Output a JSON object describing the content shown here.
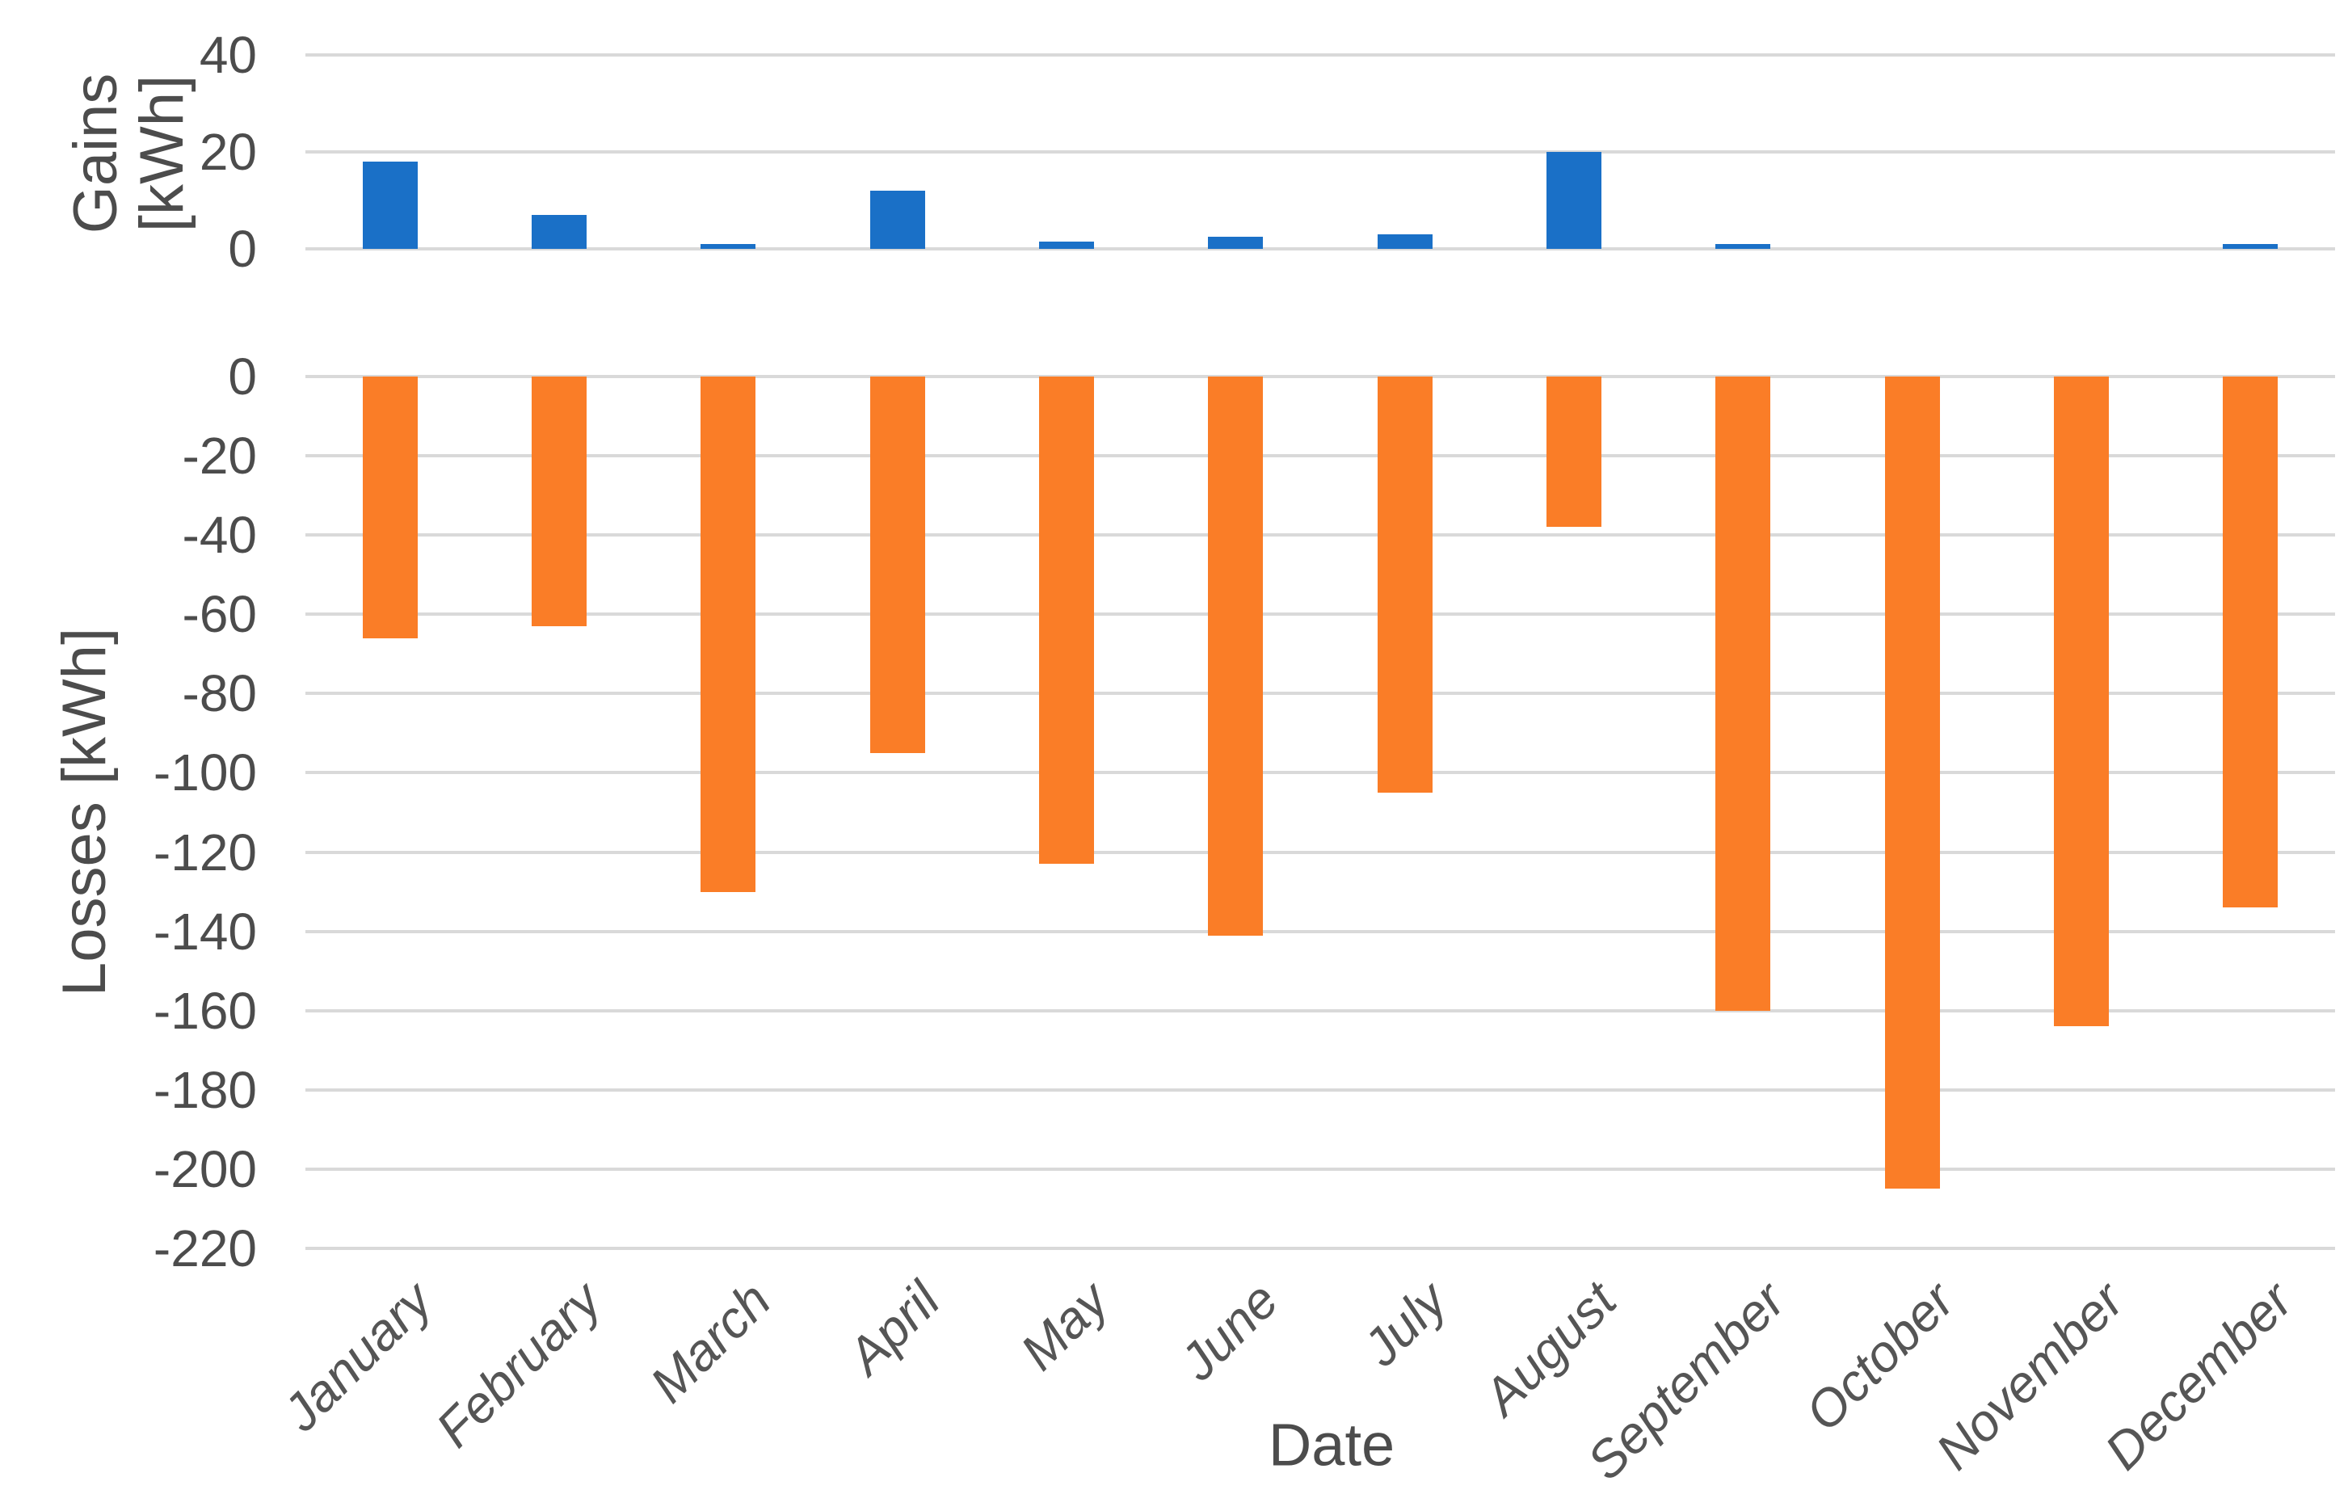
{
  "chart_data": {
    "type": "bar",
    "title": "",
    "xlabel": "Date",
    "categories": [
      "January",
      "February",
      "March",
      "April",
      "May",
      "June",
      "July",
      "August",
      "September",
      "October",
      "November",
      "December"
    ],
    "series": [
      {
        "name": "Gains",
        "panel": "gains",
        "color": "#1a70c7",
        "values": [
          18,
          7,
          1,
          12,
          1.5,
          2.5,
          3,
          20,
          1,
          0,
          0,
          1
        ]
      },
      {
        "name": "Losses",
        "panel": "losses",
        "color": "#fa7d27",
        "values": [
          -66,
          -63,
          -130,
          -95,
          -123,
          -141,
          -105,
          -38,
          -160,
          -205,
          -164,
          -134
        ]
      }
    ],
    "panels": {
      "gains": {
        "ylabel": "Gains [kWh]",
        "ylabel_lines": [
          "Gains",
          "[kWh]"
        ],
        "ylim": [
          0,
          40
        ],
        "yticks": [
          40,
          20,
          0
        ]
      },
      "losses": {
        "ylabel": "Losses [kWh]",
        "ylabel_lines": [
          "Losses [kWh]"
        ],
        "ylim": [
          -220,
          0
        ],
        "yticks": [
          0,
          -20,
          -40,
          -60,
          -80,
          -100,
          -120,
          -140,
          -160,
          -180,
          -200,
          -220
        ]
      }
    },
    "grid": true,
    "legend": false,
    "background_color": "#ffffff",
    "gridline_color": "#d9d9d9",
    "text_color": "#4c4c4c"
  },
  "layout_labels": {
    "gains_title_line1": "Gains",
    "gains_title_line2": "[kWh]",
    "losses_title": "Losses [kWh]",
    "date_title": "Date"
  }
}
